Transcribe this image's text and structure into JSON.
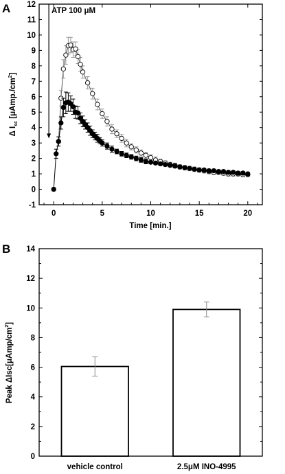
{
  "chart_data": [
    {
      "panel_label": "A",
      "type": "scatter",
      "xlabel": "Time [min.]",
      "ylabel": "Δ I",
      "ylabel_sub": "sc",
      "ylabel_unit": "[μAmp./cm",
      "ylabel_unit_sup": "2",
      "ylabel_unit_end": "]",
      "xlim": [
        -1.5,
        21.5
      ],
      "ylim": [
        -1,
        12
      ],
      "x_ticks": [
        0,
        5,
        10,
        15,
        20
      ],
      "y_ticks": [
        -1,
        0,
        1,
        2,
        3,
        4,
        5,
        6,
        7,
        8,
        9,
        10,
        11,
        12
      ],
      "annotation": {
        "text": "ATP 100 μM",
        "x": -0.5,
        "arrow_from_y": 12,
        "arrow_to_y": 3.3
      },
      "grid": false,
      "series": [
        {
          "marker": "open-circle",
          "color": "#000000",
          "errorbar_color": "#999999",
          "x": [
            0.5,
            0.75,
            1.0,
            1.25,
            1.5,
            1.75,
            2.0,
            2.25,
            2.5,
            2.75,
            3.0,
            3.5,
            4.0,
            4.5,
            5.0,
            5.5,
            6.0,
            6.5,
            7.0,
            7.5,
            8.0,
            8.5,
            9.0,
            9.5,
            10.0,
            10.5,
            11.0,
            11.5,
            12.0,
            12.5,
            13.0,
            13.5,
            14.0,
            14.5,
            15.0,
            15.5,
            16.0,
            16.5,
            17.0,
            17.5,
            18.0,
            18.5,
            19.0,
            19.5,
            20.0
          ],
          "y": [
            3.1,
            5.9,
            7.8,
            8.7,
            9.3,
            9.35,
            9.05,
            9.1,
            8.6,
            8.1,
            7.6,
            6.9,
            6.2,
            5.5,
            4.9,
            4.4,
            3.9,
            3.6,
            3.3,
            3.0,
            2.75,
            2.55,
            2.35,
            2.2,
            2.05,
            1.9,
            1.8,
            1.7,
            1.6,
            1.55,
            1.45,
            1.4,
            1.35,
            1.3,
            1.25,
            1.2,
            1.15,
            1.1,
            1.1,
            1.05,
            1.0,
            1.0,
            1.0,
            0.95,
            0.95
          ],
          "error": [
            0.3,
            0.5,
            0.6,
            0.6,
            0.55,
            0.5,
            0.5,
            0.45,
            0.45,
            0.45,
            0.4,
            0.4,
            0.35,
            0.35,
            0.3,
            0.3,
            0.3,
            0.25,
            0.25,
            0.25,
            0.2,
            0.2,
            0.2,
            0.2,
            0.2,
            0.2,
            0.15,
            0.15,
            0.15,
            0.15,
            0.15,
            0.15,
            0.15,
            0.15,
            0.15,
            0.15,
            0.15,
            0.15,
            0.15,
            0.15,
            0.15,
            0.15,
            0.15,
            0.15,
            0.15
          ]
        },
        {
          "marker": "filled-circle",
          "color": "#000000",
          "errorbar_color": "#000000",
          "x": [
            0.0,
            0.25,
            0.5,
            0.75,
            1.0,
            1.25,
            1.5,
            1.75,
            2.0,
            2.25,
            2.5,
            2.75,
            3.0,
            3.25,
            3.5,
            3.75,
            4.0,
            4.25,
            4.5,
            4.75,
            5.0,
            5.5,
            6.0,
            6.5,
            7.0,
            7.5,
            8.0,
            8.5,
            9.0,
            9.5,
            10.0,
            10.5,
            11.0,
            11.5,
            12.0,
            12.5,
            13.0,
            13.5,
            14.0,
            14.5,
            15.0,
            15.5,
            16.0,
            16.5,
            17.0,
            17.5,
            18.0,
            18.5,
            19.0,
            19.5,
            20.0
          ],
          "y": [
            0.0,
            2.3,
            3.1,
            4.3,
            5.3,
            5.6,
            5.65,
            5.55,
            5.35,
            5.0,
            4.95,
            4.6,
            4.4,
            4.2,
            4.0,
            3.8,
            3.6,
            3.45,
            3.3,
            3.15,
            3.0,
            2.8,
            2.6,
            2.45,
            2.3,
            2.2,
            2.1,
            2.0,
            1.9,
            1.8,
            1.75,
            1.7,
            1.65,
            1.6,
            1.55,
            1.5,
            1.45,
            1.4,
            1.35,
            1.3,
            1.25,
            1.25,
            1.2,
            1.2,
            1.15,
            1.15,
            1.1,
            1.1,
            1.05,
            1.05,
            1.0
          ],
          "error": [
            0.1,
            0.3,
            0.3,
            0.4,
            0.6,
            0.7,
            0.6,
            0.5,
            0.5,
            0.4,
            0.4,
            0.35,
            0.35,
            0.3,
            0.3,
            0.3,
            0.25,
            0.25,
            0.25,
            0.2,
            0.2,
            0.2,
            0.2,
            0.15,
            0.15,
            0.15,
            0.15,
            0.15,
            0.15,
            0.15,
            0.1,
            0.1,
            0.1,
            0.1,
            0.1,
            0.1,
            0.1,
            0.1,
            0.1,
            0.1,
            0.1,
            0.1,
            0.1,
            0.1,
            0.1,
            0.1,
            0.1,
            0.1,
            0.1,
            0.1,
            0.1
          ]
        }
      ]
    },
    {
      "panel_label": "B",
      "type": "bar",
      "ylabel": "Peak ΔIsc[μAmp/cm",
      "ylabel_sup": "2",
      "ylabel_end": "]",
      "ylim": [
        0,
        14
      ],
      "y_ticks": [
        0,
        2,
        4,
        6,
        8,
        10,
        12,
        14
      ],
      "grid": false,
      "categories": [
        "vehicle control",
        "2.5μM INO-4995"
      ],
      "values": [
        6.05,
        9.9
      ],
      "error": [
        0.65,
        0.5
      ]
    }
  ]
}
